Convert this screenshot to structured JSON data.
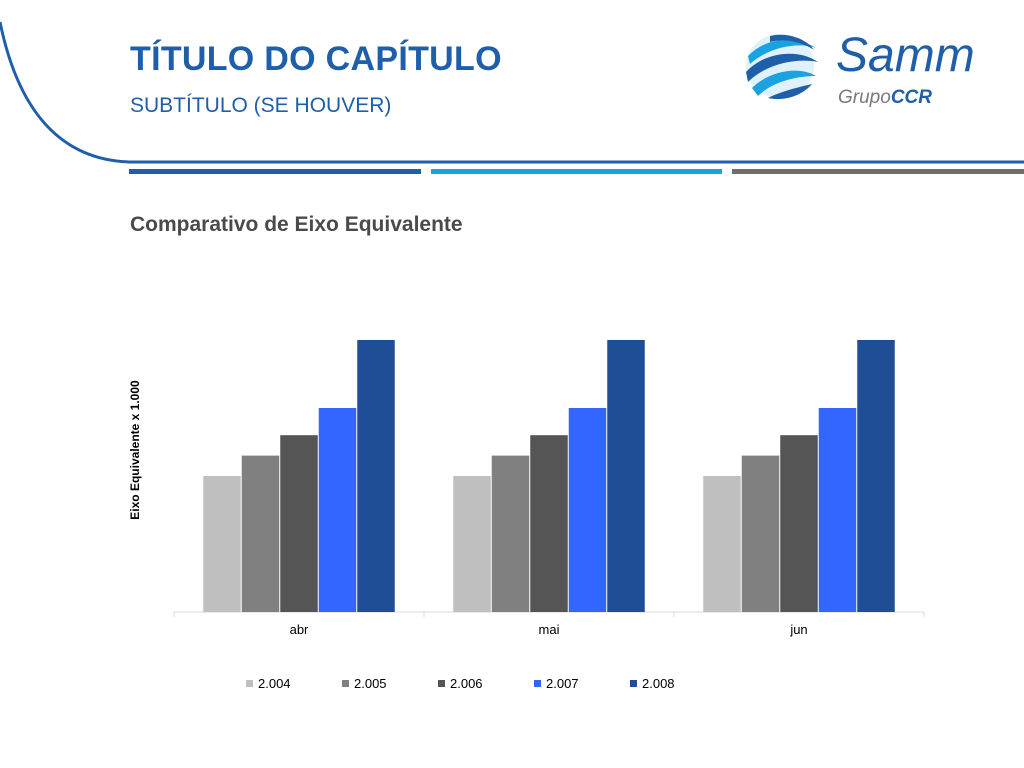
{
  "header": {
    "title": "TÍTULO DO CAPÍTULO",
    "subtitle": "SUBTÍTULO (SE HOUVER)"
  },
  "logo": {
    "brand": "Samm",
    "group_prefix": "Grupo",
    "group_name": "CCR"
  },
  "colors": {
    "brand_blue": "#1f5ea8",
    "accent_cyan": "#1aa3e0",
    "accent_gray": "#6f6f6f"
  },
  "chart_data": {
    "type": "bar",
    "title": "Comparativo de Eixo Equivalente",
    "xlabel": "",
    "ylabel": "Eixo Equivalente x 1.000",
    "categories": [
      "abr",
      "mai",
      "jun"
    ],
    "series": [
      {
        "name": "2.004",
        "color": "#bfbfbf",
        "values": [
          50,
          50,
          50
        ]
      },
      {
        "name": "2.005",
        "color": "#808080",
        "values": [
          57.5,
          57.5,
          57.5
        ]
      },
      {
        "name": "2.006",
        "color": "#555555",
        "values": [
          65,
          65,
          65
        ]
      },
      {
        "name": "2.007",
        "color": "#3366ff",
        "values": [
          75,
          75,
          75
        ]
      },
      {
        "name": "2.008",
        "color": "#1f4e96",
        "values": [
          100,
          100,
          100
        ]
      }
    ],
    "ylim": [
      0,
      100
    ],
    "grid": false,
    "legend_position": "bottom"
  }
}
